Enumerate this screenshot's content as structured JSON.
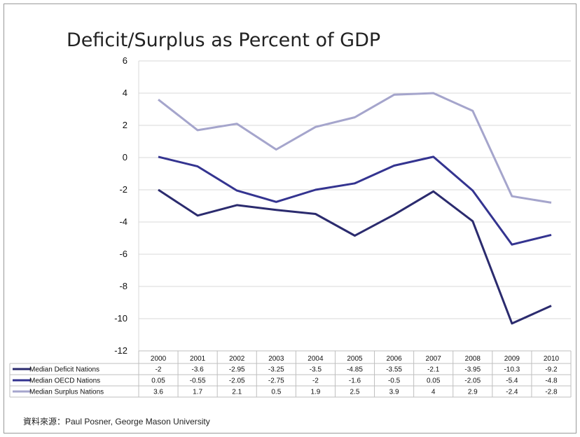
{
  "chart_data": {
    "type": "line",
    "title": "Deficit/Surplus as Percent of GDP",
    "categories": [
      "2000",
      "2001",
      "2002",
      "2003",
      "2004",
      "2005",
      "2006",
      "2007",
      "2008",
      "2009",
      "2010"
    ],
    "y_ticks": [
      "6",
      "4",
      "2",
      "0",
      "-2",
      "-4",
      "-6",
      "-8",
      "-10",
      "-12"
    ],
    "ylim": [
      -12,
      6
    ],
    "grid": true,
    "legend": "data-table-below",
    "series": [
      {
        "name": "Median Deficit Nations",
        "color": "#2b2b6e",
        "values": [
          -2,
          -3.6,
          -2.95,
          -3.25,
          -3.5,
          -4.85,
          -3.55,
          -2.1,
          -3.95,
          -10.3,
          -9.2
        ],
        "labels": [
          "-2",
          "-3.6",
          "-2.95",
          "-3.25",
          "-3.5",
          "-4.85",
          "-3.55",
          "-2.1",
          "-3.95",
          "-10.3",
          "-9.2"
        ]
      },
      {
        "name": "Median OECD Nations",
        "color": "#343490",
        "values": [
          0.05,
          -0.55,
          -2.05,
          -2.75,
          -2,
          -1.6,
          -0.5,
          0.05,
          -2.05,
          -5.4,
          -4.8
        ],
        "labels": [
          "0.05",
          "-0.55",
          "-2.05",
          "-2.75",
          "-2",
          "-1.6",
          "-0.5",
          "0.05",
          "-2.05",
          "-5.4",
          "-4.8"
        ]
      },
      {
        "name": "Median Surplus Nations",
        "color": "#a5a5cc",
        "values": [
          3.6,
          1.7,
          2.1,
          0.5,
          1.9,
          2.5,
          3.9,
          4,
          2.9,
          -2.4,
          -2.8
        ],
        "labels": [
          "3.6",
          "1.7",
          "2.1",
          "0.5",
          "1.9",
          "2.5",
          "3.9",
          "4",
          "2.9",
          "-2.4",
          "-2.8"
        ]
      }
    ]
  },
  "source": "資料來源：Paul Posner, George Mason University"
}
